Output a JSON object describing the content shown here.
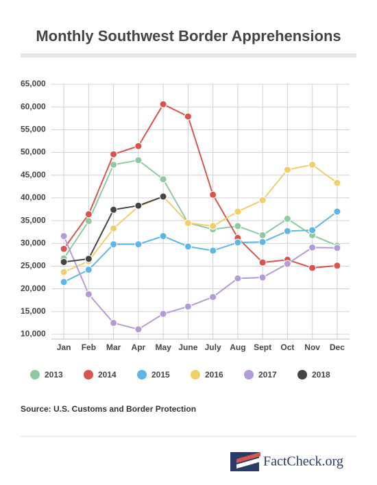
{
  "chart_data": {
    "type": "line",
    "title": "Monthly Southwest Border Apprehensions",
    "source": "Source: U.S. Customs and Border Protection",
    "logo": "FactCheck.org",
    "categories": [
      "Jan",
      "Feb",
      "Mar",
      "Apr",
      "May",
      "June",
      "July",
      "Aug",
      "Sept",
      "Oct",
      "Nov",
      "Dec"
    ],
    "series": [
      {
        "name": "2013",
        "color": "#8fc9a2",
        "values": [
          26700,
          34900,
          47300,
          48300,
          44100,
          34500,
          33100,
          33800,
          31800,
          35400,
          31800,
          29500
        ]
      },
      {
        "name": "2014",
        "color": "#d9534f",
        "values": [
          28800,
          36400,
          49600,
          51400,
          60600,
          57900,
          40700,
          31200,
          25800,
          26400,
          24600,
          25100
        ]
      },
      {
        "name": "2015",
        "color": "#5cb6e6",
        "values": [
          21500,
          24200,
          29800,
          29800,
          31600,
          29300,
          28400,
          30200,
          30300,
          32700,
          32900,
          37000
        ]
      },
      {
        "name": "2016",
        "color": "#f0cf6b",
        "values": [
          23700,
          26100,
          33300,
          38100,
          40300,
          34500,
          33800,
          37000,
          39500,
          46200,
          47300,
          43300
        ]
      },
      {
        "name": "2017",
        "color": "#b39bd8",
        "values": [
          31600,
          18800,
          12500,
          11100,
          14500,
          16100,
          18200,
          22300,
          22500,
          25500,
          29100,
          29000
        ]
      },
      {
        "name": "2018",
        "color": "#444444",
        "values": [
          25900,
          26600,
          37400,
          38300,
          40300,
          null,
          null,
          null,
          null,
          null,
          null,
          null
        ]
      }
    ],
    "ylim": [
      10000,
      65000
    ],
    "yticks": [
      {
        "value": 10000,
        "label": "10,000"
      },
      {
        "value": 15000,
        "label": "15,000"
      },
      {
        "value": 20000,
        "label": "20,000"
      },
      {
        "value": 25000,
        "label": "25,000"
      },
      {
        "value": 30000,
        "label": "30,000"
      },
      {
        "value": 35000,
        "label": "35,000"
      },
      {
        "value": 40000,
        "label": "40,000"
      },
      {
        "value": 45000,
        "label": "45,000"
      },
      {
        "value": 50000,
        "label": "50,000"
      },
      {
        "value": 55000,
        "label": "55,000"
      },
      {
        "value": 60000,
        "label": "60,000"
      },
      {
        "value": 65000,
        "label": "65,000"
      }
    ],
    "grid": true
  }
}
